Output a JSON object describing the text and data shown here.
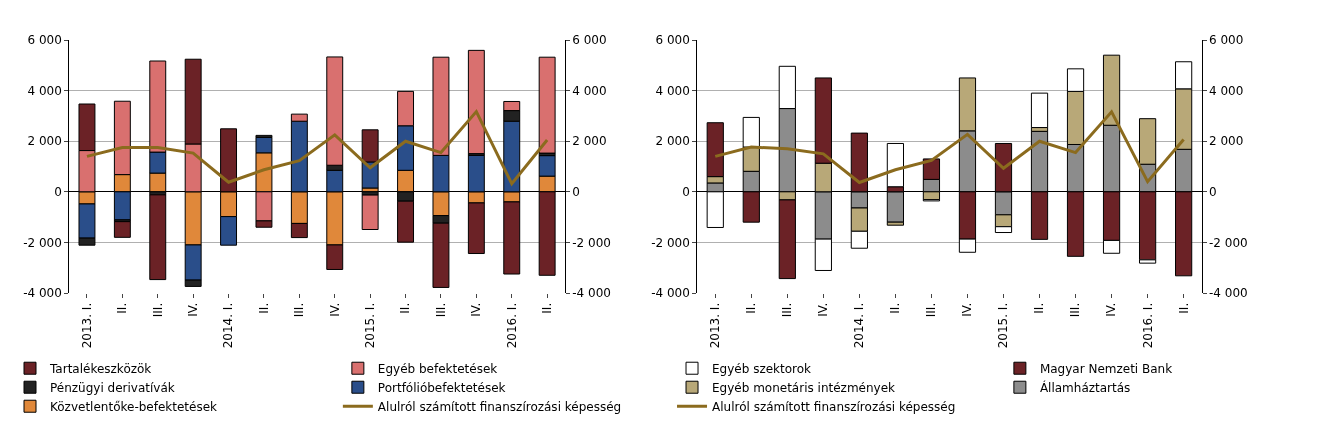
{
  "chart_data": [
    {
      "type": "bar",
      "stacked": true,
      "grid": "y",
      "legend": "bottom",
      "categories": [
        "2013. I.",
        "II.",
        "III.",
        "IV.",
        "2014. I.",
        "II.",
        "III.",
        "IV.",
        "2015. I.",
        "II.",
        "III.",
        "IV.",
        "2016. I.",
        "II."
      ],
      "ylim": [
        -4000,
        6000
      ],
      "yticks": [
        {
          "value": -4000,
          "label": "-4 000"
        },
        {
          "value": -2000,
          "label": "-2 000"
        },
        0,
        {
          "value": 2000,
          "label": "2 000"
        },
        {
          "value": 4000,
          "label": "4 000"
        },
        {
          "value": 6000,
          "label": "6 000"
        }
      ],
      "y2lim": [
        -4000,
        6000
      ],
      "y2ticks": [
        {
          "value": -4000,
          "label": "-4 000"
        },
        {
          "value": -2000,
          "label": "-2 000"
        },
        0,
        {
          "value": 2000,
          "label": "2 000"
        },
        {
          "value": 4000,
          "label": "4 000"
        },
        {
          "value": 6000,
          "label": "6 000"
        }
      ],
      "series": [
        {
          "name": "Közvetlentőke-befektetések",
          "color": "#e0883a",
          "values": [
            -480,
            680,
            740,
            -2100,
            -980,
            1540,
            -1250,
            -2100,
            150,
            850,
            -940,
            -440,
            -400,
            620
          ]
        },
        {
          "name": "Portfólióbefektetések",
          "color": "#2a4e8a",
          "values": [
            -1350,
            -1110,
            830,
            -1390,
            -1130,
            610,
            2790,
            850,
            1030,
            1760,
            1440,
            1440,
            2790,
            810
          ]
        },
        {
          "name": "Pénzügyi derivatívák",
          "color": "#222222",
          "values": [
            -280,
            -70,
            -120,
            -250,
            null,
            80,
            null,
            200,
            -130,
            -370,
            -300,
            70,
            420,
            100
          ]
        },
        {
          "name": "Egyéb befektetések",
          "color": "#d9706f",
          "values": [
            1630,
            2900,
            3600,
            1890,
            null,
            -1150,
            280,
            4280,
            -1360,
            1360,
            3880,
            4080,
            360,
            3790
          ]
        },
        {
          "name": "Tartalékeszközök",
          "color": "#6b2226",
          "values": [
            1840,
            -620,
            -3350,
            3350,
            2490,
            -250,
            -560,
            -970,
            1270,
            -1620,
            -2540,
            -2000,
            -2850,
            -3300
          ]
        },
        {
          "name": "Alulról számított finanszírozási képesség",
          "type": "line",
          "color": "#8b6b1e",
          "values": [
            1400,
            1750,
            1750,
            1530,
            380,
            870,
            1230,
            2250,
            950,
            2000,
            1550,
            3170,
            320,
            2050
          ]
        }
      ]
    },
    {
      "type": "bar",
      "stacked": true,
      "grid": "y",
      "legend": "bottom",
      "categories": [
        "2013. I.",
        "II.",
        "III.",
        "IV.",
        "2014. I.",
        "II.",
        "III.",
        "IV.",
        "2015. I.",
        "II.",
        "III.",
        "IV.",
        "2016. I.",
        "II."
      ],
      "ylim": [
        -4000,
        6000
      ],
      "yticks": [
        {
          "value": -4000,
          "label": "-4 000"
        },
        {
          "value": -2000,
          "label": "-2 000"
        },
        0,
        {
          "value": 2000,
          "label": "2 000"
        },
        {
          "value": 4000,
          "label": "4 000"
        },
        {
          "value": 6000,
          "label": "6 000"
        }
      ],
      "y2lim": [
        -4000,
        6000
      ],
      "y2ticks": [
        {
          "value": -4000,
          "label": "-4 000"
        },
        {
          "value": -2000,
          "label": "-2 000"
        },
        0,
        {
          "value": 2000,
          "label": "2 000"
        },
        {
          "value": 4000,
          "label": "4 000"
        },
        {
          "value": 6000,
          "label": "6 000"
        }
      ],
      "series": [
        {
          "name": "Államháztartás",
          "color": "#8c8c8c",
          "values": [
            350,
            810,
            3290,
            -1870,
            -640,
            -1200,
            490,
            2410,
            -910,
            2390,
            1870,
            2630,
            1090,
            1680
          ]
        },
        {
          "name": "Egyéb monetáris intézmények",
          "color": "#b8a878",
          "values": [
            250,
            960,
            -320,
            1130,
            -920,
            -120,
            -310,
            2090,
            -470,
            150,
            2100,
            2770,
            1800,
            2390
          ]
        },
        {
          "name": "Magyar Nemzeti Bank",
          "color": "#6b2226",
          "values": [
            2130,
            -1200,
            -3110,
            3370,
            2320,
            200,
            810,
            -1870,
            1910,
            -1880,
            -2550,
            -1920,
            -2690,
            -3320
          ]
        },
        {
          "name": "Egyéb szektorok",
          "color": "#ffffff",
          "values": [
            -1410,
            1170,
            1670,
            -1240,
            -670,
            1710,
            -50,
            -520,
            -230,
            1360,
            890,
            -510,
            -130,
            1070
          ]
        },
        {
          "name": "Alulról számított finanszírozási képesség",
          "type": "line",
          "color": "#8b6b1e",
          "values": [
            1400,
            1770,
            1700,
            1500,
            370,
            870,
            1240,
            2270,
            930,
            2000,
            1550,
            3160,
            400,
            2070
          ]
        }
      ]
    }
  ]
}
